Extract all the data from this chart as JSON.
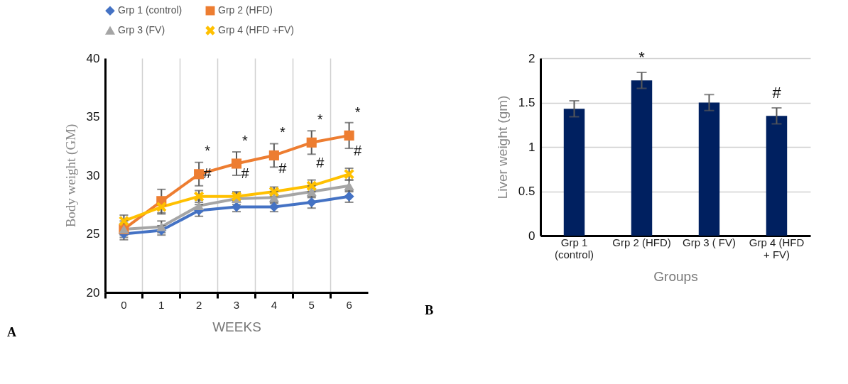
{
  "chart_data": [
    {
      "type": "line",
      "categories": [
        "0",
        "1",
        "2",
        "3",
        "4",
        "5",
        "6"
      ],
      "xlabel": "WEEKS",
      "ylabel": "Body weight (GM)",
      "ylim": [
        20,
        40
      ],
      "yticks": [
        20,
        25,
        30,
        35,
        40
      ],
      "grid": "x",
      "legend": "top",
      "line_style": "solid",
      "series": [
        {
          "name": "Grp 1 (control)",
          "color": "#4472c4",
          "marker": "diamond",
          "values": [
            25.0,
            25.3,
            27.0,
            27.3,
            27.3,
            27.7,
            28.2
          ],
          "errors": [
            0.5,
            0.4,
            0.5,
            0.4,
            0.4,
            0.5,
            0.5
          ]
        },
        {
          "name": "Grp 2 (HFD)",
          "color": "#ed7d31",
          "marker": "square",
          "values": [
            25.4,
            27.8,
            30.1,
            31.0,
            31.7,
            32.8,
            33.4
          ],
          "errors": [
            0.7,
            1.0,
            1.0,
            1.0,
            1.0,
            1.0,
            1.1
          ]
        },
        {
          "name": "Grp 3 (FV)",
          "color": "#a5a5a5",
          "marker": "triangle",
          "values": [
            25.4,
            25.6,
            27.4,
            28.0,
            28.1,
            28.6,
            29.1
          ],
          "errors": [
            0.5,
            0.5,
            0.5,
            0.5,
            0.5,
            0.5,
            0.5
          ]
        },
        {
          "name": "Grp 4 (HFD +FV)",
          "color": "#ffc000",
          "marker": "cross",
          "values": [
            26.1,
            27.3,
            28.2,
            28.2,
            28.6,
            29.1,
            30.1
          ],
          "errors": [
            0.5,
            0.6,
            0.5,
            0.4,
            0.4,
            0.5,
            0.5
          ]
        }
      ],
      "annotations": [
        {
          "text": "*",
          "x": "2",
          "y": 30.1
        },
        {
          "text": "*",
          "x": "3",
          "y": 31.0
        },
        {
          "text": "*",
          "x": "4",
          "y": 31.7
        },
        {
          "text": "*",
          "x": "5",
          "y": 32.8
        },
        {
          "text": "*",
          "x": "6",
          "y": 33.4
        },
        {
          "text": "#",
          "x": "2",
          "y": 28.2
        },
        {
          "text": "#",
          "x": "3",
          "y": 28.2
        },
        {
          "text": "#",
          "x": "4",
          "y": 28.6
        },
        {
          "text": "#",
          "x": "5",
          "y": 29.1
        },
        {
          "text": "#",
          "x": "6",
          "y": 30.1
        },
        "A"
      ]
    },
    {
      "type": "bar",
      "categories": [
        "Grp 1 (control)",
        "Grp 2 (HFD)",
        "Grp 3 ( FV)",
        "Grp 4 (HFD + FV)"
      ],
      "xlabel": "Groups",
      "ylabel": "Liver weight (gm)",
      "ylim": [
        0,
        2
      ],
      "yticks": [
        0,
        0.5,
        1,
        1.5,
        2
      ],
      "grid": "y",
      "color": "#002060",
      "values": [
        1.43,
        1.75,
        1.5,
        1.35
      ],
      "errors": [
        0.09,
        0.09,
        0.09,
        0.09
      ],
      "annotations": [
        {
          "text": "*",
          "x": "Grp 2 (HFD)",
          "y": 1.75
        },
        {
          "text": "#",
          "x": "Grp 4 (HFD + FV)",
          "y": 1.35
        },
        "B"
      ]
    }
  ]
}
